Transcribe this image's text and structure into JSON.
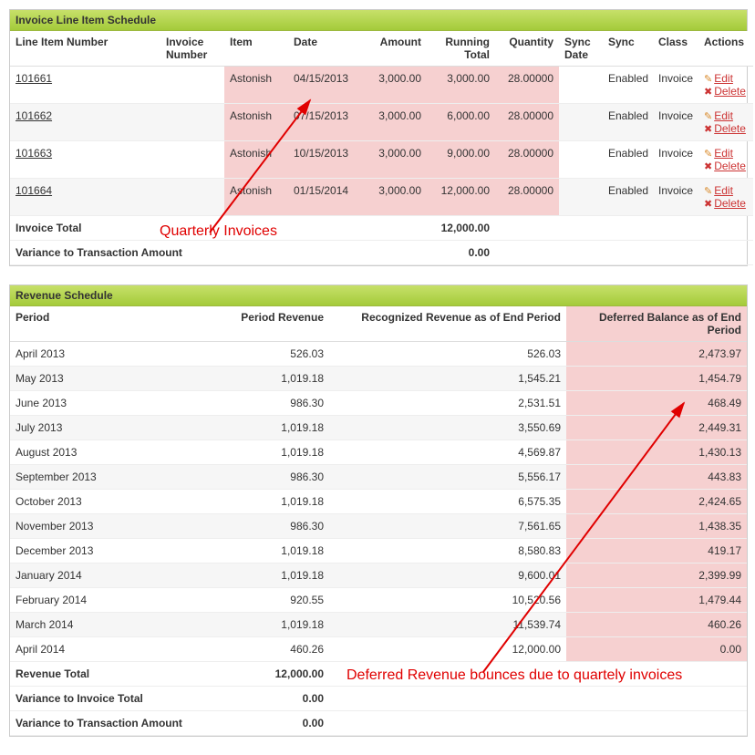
{
  "colors": {
    "header_gradient_top": "#c7e06a",
    "header_gradient_bottom": "#a4cb3a",
    "highlight_pink": "#f6d0d0",
    "link_underline": "#333333",
    "action_red": "#cc3333",
    "annotation_red": "#e00000"
  },
  "invoice_panel": {
    "title": "Invoice Line Item Schedule",
    "columns": {
      "line_item_number": "Line Item Number",
      "invoice_number": "Invoice Number",
      "item": "Item",
      "date": "Date",
      "amount": "Amount",
      "running_total": "Running Total",
      "quantity": "Quantity",
      "sync_date": "Sync Date",
      "sync": "Sync",
      "class": "Class",
      "actions": "Actions"
    },
    "rows": [
      {
        "num": "101661",
        "inv": "",
        "item": "Astonish",
        "date": "04/15/2013",
        "amount": "3,000.00",
        "running": "3,000.00",
        "qty": "28.00000",
        "sync_date": "",
        "sync": "Enabled",
        "class": "Invoice"
      },
      {
        "num": "101662",
        "inv": "",
        "item": "Astonish",
        "date": "07/15/2013",
        "amount": "3,000.00",
        "running": "6,000.00",
        "qty": "28.00000",
        "sync_date": "",
        "sync": "Enabled",
        "class": "Invoice"
      },
      {
        "num": "101663",
        "inv": "",
        "item": "Astonish",
        "date": "10/15/2013",
        "amount": "3,000.00",
        "running": "9,000.00",
        "qty": "28.00000",
        "sync_date": "",
        "sync": "Enabled",
        "class": "Invoice"
      },
      {
        "num": "101664",
        "inv": "",
        "item": "Astonish",
        "date": "01/15/2014",
        "amount": "3,000.00",
        "running": "12,000.00",
        "qty": "28.00000",
        "sync_date": "",
        "sync": "Enabled",
        "class": "Invoice"
      }
    ],
    "actions": {
      "edit": "Edit",
      "delete": "Delete"
    },
    "totals": {
      "invoice_total_label": "Invoice Total",
      "invoice_total_value": "12,000.00",
      "variance_label": "Variance to Transaction Amount",
      "variance_value": "0.00"
    },
    "annotation": "Quarterly Invoices"
  },
  "revenue_panel": {
    "title": "Revenue Schedule",
    "columns": {
      "period": "Period",
      "period_revenue": "Period Revenue",
      "recognized": "Recognized Revenue as of End Period",
      "deferred": "Deferred Balance as of End Period"
    },
    "rows": [
      {
        "period": "April 2013",
        "rev": "526.03",
        "rec": "526.03",
        "def": "2,473.97"
      },
      {
        "period": "May 2013",
        "rev": "1,019.18",
        "rec": "1,545.21",
        "def": "1,454.79"
      },
      {
        "period": "June 2013",
        "rev": "986.30",
        "rec": "2,531.51",
        "def": "468.49"
      },
      {
        "period": "July 2013",
        "rev": "1,019.18",
        "rec": "3,550.69",
        "def": "2,449.31"
      },
      {
        "period": "August 2013",
        "rev": "1,019.18",
        "rec": "4,569.87",
        "def": "1,430.13"
      },
      {
        "period": "September 2013",
        "rev": "986.30",
        "rec": "5,556.17",
        "def": "443.83"
      },
      {
        "period": "October 2013",
        "rev": "1,019.18",
        "rec": "6,575.35",
        "def": "2,424.65"
      },
      {
        "period": "November 2013",
        "rev": "986.30",
        "rec": "7,561.65",
        "def": "1,438.35"
      },
      {
        "period": "December 2013",
        "rev": "1,019.18",
        "rec": "8,580.83",
        "def": "419.17"
      },
      {
        "period": "January 2014",
        "rev": "1,019.18",
        "rec": "9,600.01",
        "def": "2,399.99"
      },
      {
        "period": "February 2014",
        "rev": "920.55",
        "rec": "10,520.56",
        "def": "1,479.44"
      },
      {
        "period": "March 2014",
        "rev": "1,019.18",
        "rec": "11,539.74",
        "def": "460.26"
      },
      {
        "period": "April 2014",
        "rev": "460.26",
        "rec": "12,000.00",
        "def": "0.00"
      }
    ],
    "totals": {
      "revenue_total_label": "Revenue Total",
      "revenue_total_value": "12,000.00",
      "variance_invoice_label": "Variance to Invoice Total",
      "variance_invoice_value": "0.00",
      "variance_txn_label": "Variance to Transaction Amount",
      "variance_txn_value": "0.00"
    },
    "annotation": "Deferred Revenue bounces due to quartely invoices"
  }
}
